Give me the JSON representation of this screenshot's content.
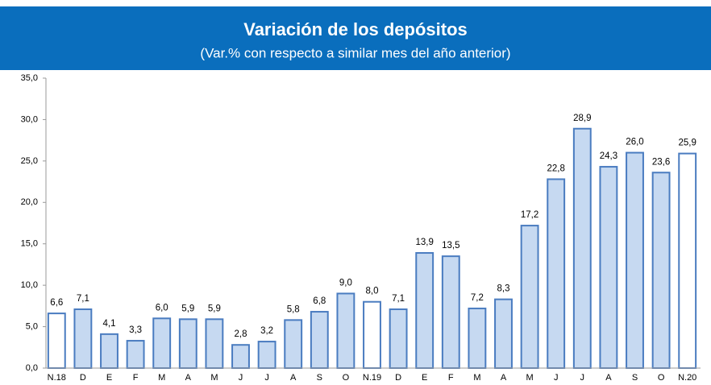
{
  "chart_data": {
    "type": "bar",
    "title": "Variación de los depósitos",
    "subtitle": "(Var.% con respecto a similar mes del año anterior)",
    "banner_color": "#0a6ebd",
    "categories": [
      "N.18",
      "D",
      "E",
      "F",
      "M",
      "A",
      "M",
      "J",
      "J",
      "A",
      "S",
      "O",
      "N.19",
      "D",
      "E",
      "F",
      "M",
      "A",
      "M",
      "J",
      "J",
      "A",
      "S",
      "O",
      "N.20"
    ],
    "values": [
      6.6,
      7.1,
      4.1,
      3.3,
      6.0,
      5.9,
      5.9,
      2.8,
      3.2,
      5.8,
      6.8,
      9.0,
      8.0,
      7.1,
      13.9,
      13.5,
      7.2,
      8.3,
      17.2,
      22.8,
      28.9,
      24.3,
      26.0,
      23.6,
      25.9
    ],
    "value_labels": [
      "6,6",
      "7,1",
      "4,1",
      "3,3",
      "6,0",
      "5,9",
      "5,9",
      "2,8",
      "3,2",
      "5,8",
      "6,8",
      "9,0",
      "8,0",
      "7,1",
      "13,9",
      "13,5",
      "7,2",
      "8,3",
      "17,2",
      "22,8",
      "28,9",
      "24,3",
      "26,0",
      "23,6",
      "25,9"
    ],
    "colors": [
      "#ffffff",
      "#c6d9f1",
      "#c6d9f1",
      "#c6d9f1",
      "#c6d9f1",
      "#c6d9f1",
      "#c6d9f1",
      "#c6d9f1",
      "#c6d9f1",
      "#c6d9f1",
      "#c6d9f1",
      "#c6d9f1",
      "#ffffff",
      "#c6d9f1",
      "#c6d9f1",
      "#c6d9f1",
      "#c6d9f1",
      "#c6d9f1",
      "#c6d9f1",
      "#c6d9f1",
      "#c6d9f1",
      "#c6d9f1",
      "#c6d9f1",
      "#c6d9f1",
      "#ffffff"
    ],
    "edge_color": "#4a7cc0",
    "ylim": [
      0,
      35
    ],
    "yticks": [
      {
        "value": 0,
        "label": "0,0"
      },
      {
        "value": 5,
        "label": "5,0"
      },
      {
        "value": 10,
        "label": "10,0"
      },
      {
        "value": 15,
        "label": "15,0"
      },
      {
        "value": 20,
        "label": "20,0"
      },
      {
        "value": 25,
        "label": "25,0"
      },
      {
        "value": 30,
        "label": "30,0"
      },
      {
        "value": 35,
        "label": "35,0"
      }
    ],
    "grid": false
  }
}
